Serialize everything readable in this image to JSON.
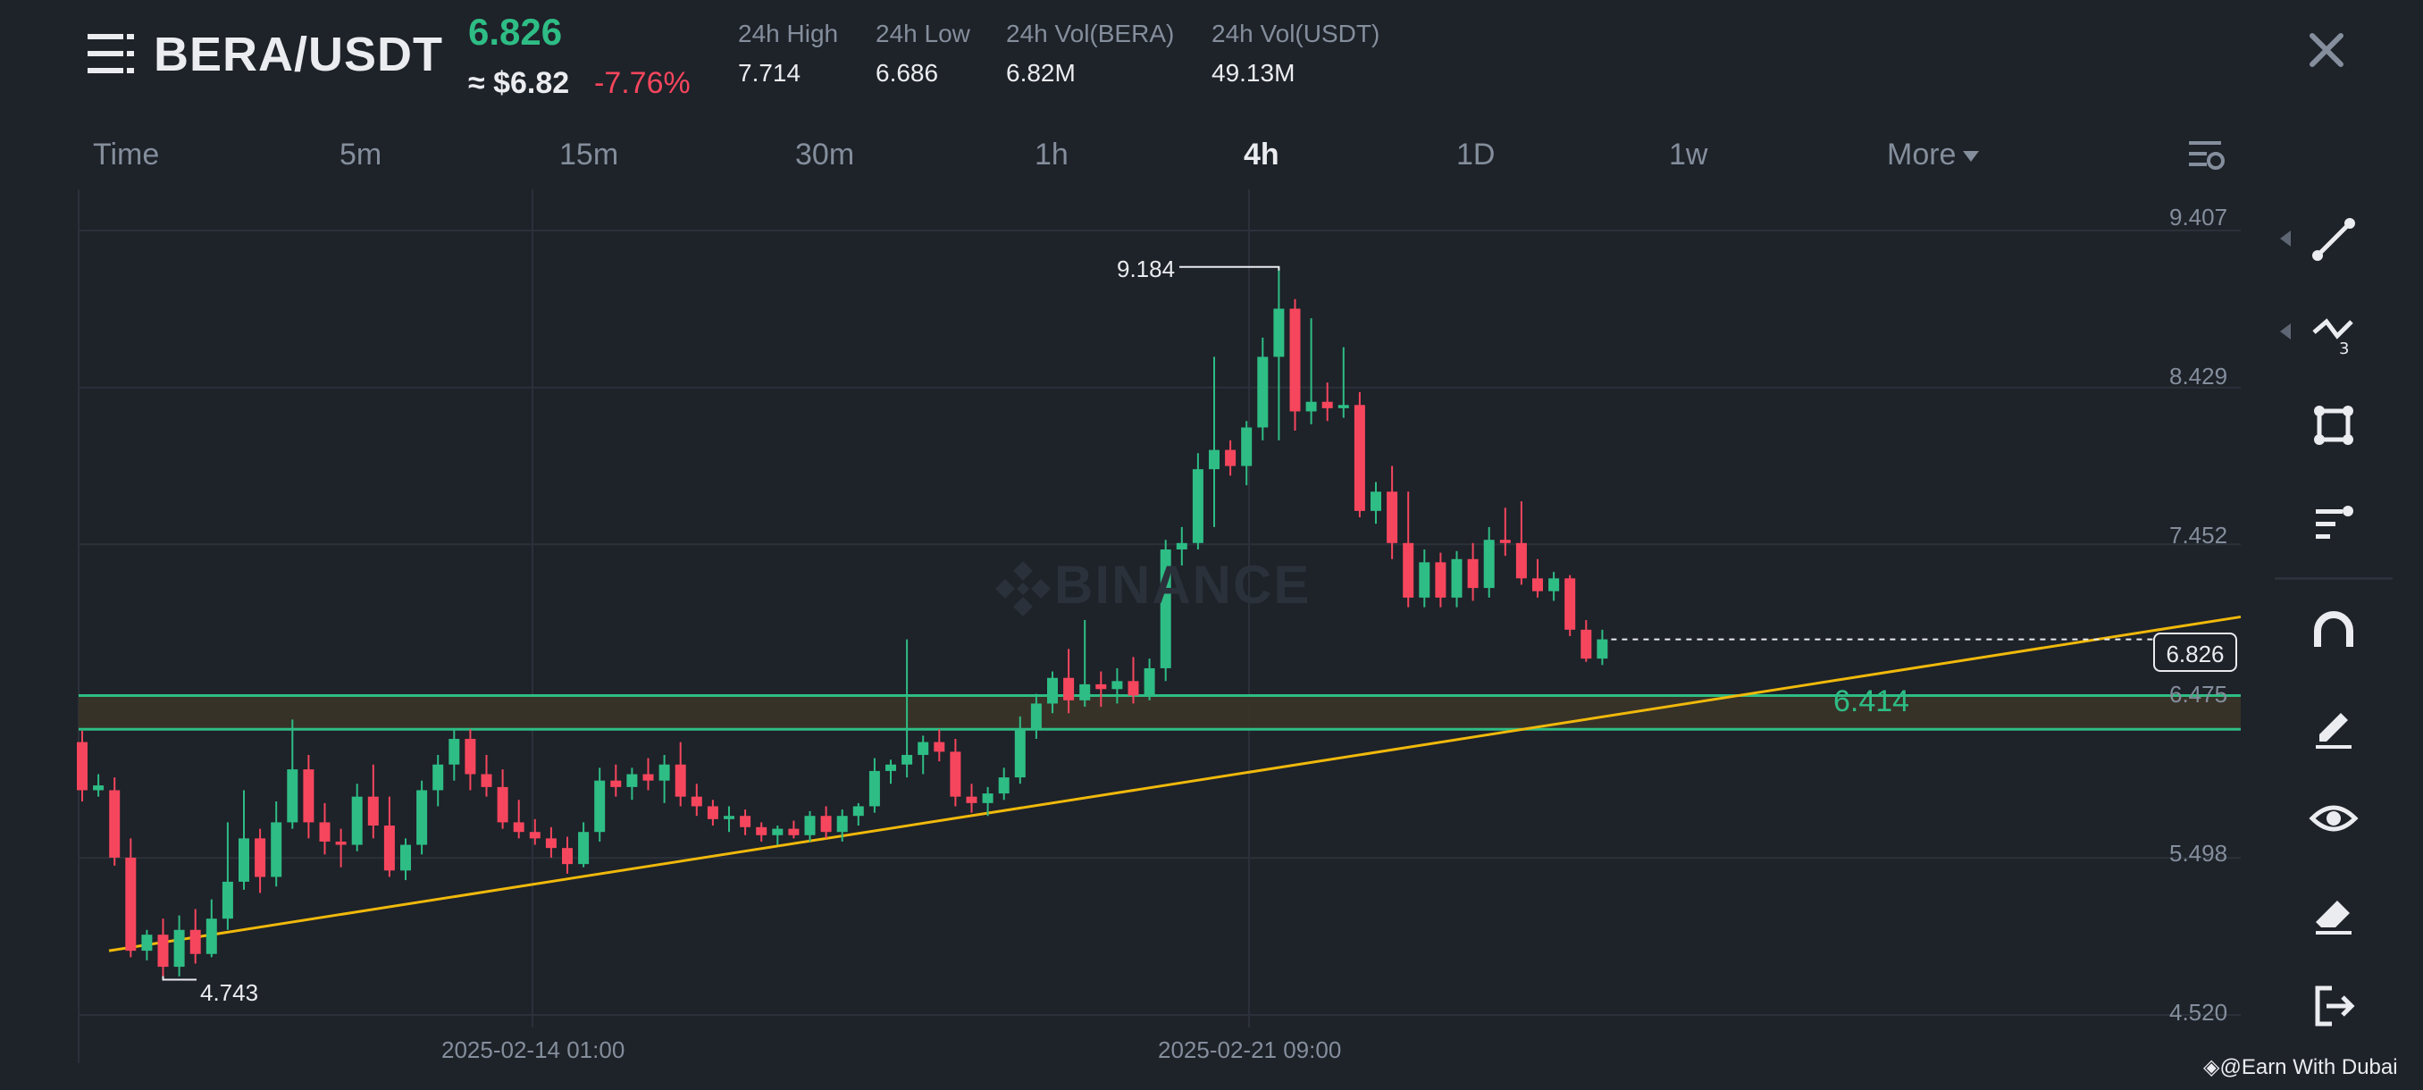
{
  "header": {
    "pair": "BERA/USDT",
    "last_price": "6.826",
    "approx_price": "≈ $6.82",
    "change_percent": "-7.76%",
    "stats": [
      {
        "label": "24h High",
        "value": "7.714"
      },
      {
        "label": "24h Low",
        "value": "6.686"
      },
      {
        "label": "24h Vol(BERA)",
        "value": "6.82M"
      },
      {
        "label": "24h Vol(USDT)",
        "value": "49.13M"
      }
    ]
  },
  "intervals": [
    {
      "label": "Time",
      "active": false
    },
    {
      "label": "5m",
      "active": false
    },
    {
      "label": "15m",
      "active": false
    },
    {
      "label": "30m",
      "active": false
    },
    {
      "label": "1h",
      "active": false
    },
    {
      "label": "4h",
      "active": true
    },
    {
      "label": "1D",
      "active": false
    },
    {
      "label": "1w",
      "active": false
    },
    {
      "label": "More",
      "active": false
    }
  ],
  "chart": {
    "price_ticks": [
      "9.407",
      "8.429",
      "7.452",
      "6.475",
      "5.498",
      "4.520"
    ],
    "last_price_label": "6.826",
    "zone_label": "6.414",
    "high_annotation": "9.184",
    "low_annotation": "4.743",
    "date_labels": [
      "2025-02-14 01:00",
      "2025-02-21 09:00"
    ],
    "watermark": "BINANCE"
  },
  "chart_data": {
    "type": "candlestick",
    "y_range": [
      4.52,
      9.407
    ],
    "up_color": "#2ebd85",
    "down_color": "#f6465d",
    "trendline_color": "#f0b90b",
    "zone_color": "#2ebd85",
    "zone_price_range": [
      6.3,
      6.51
    ],
    "trendline": {
      "from": 4.92,
      "to": 7.0
    },
    "candles": [
      [
        6.22,
        6.29,
        5.85,
        5.92
      ],
      [
        5.92,
        6.02,
        5.88,
        5.95
      ],
      [
        5.92,
        6.0,
        5.45,
        5.5
      ],
      [
        5.5,
        5.62,
        4.88,
        4.92
      ],
      [
        4.92,
        5.05,
        4.86,
        5.02
      ],
      [
        5.02,
        5.12,
        4.74,
        4.82
      ],
      [
        4.82,
        5.14,
        4.76,
        5.05
      ],
      [
        5.05,
        5.18,
        4.84,
        4.9
      ],
      [
        4.9,
        5.24,
        4.88,
        5.12
      ],
      [
        5.12,
        5.72,
        5.05,
        5.35
      ],
      [
        5.35,
        5.92,
        5.3,
        5.62
      ],
      [
        5.62,
        5.68,
        5.28,
        5.38
      ],
      [
        5.38,
        5.85,
        5.32,
        5.72
      ],
      [
        5.72,
        6.36,
        5.68,
        6.05
      ],
      [
        6.05,
        6.14,
        5.62,
        5.72
      ],
      [
        5.72,
        5.84,
        5.52,
        5.6
      ],
      [
        5.6,
        5.68,
        5.44,
        5.58
      ],
      [
        5.58,
        5.96,
        5.54,
        5.88
      ],
      [
        5.88,
        6.08,
        5.62,
        5.7
      ],
      [
        5.7,
        5.88,
        5.38,
        5.42
      ],
      [
        5.42,
        5.62,
        5.36,
        5.58
      ],
      [
        5.58,
        5.98,
        5.52,
        5.92
      ],
      [
        5.92,
        6.14,
        5.82,
        6.08
      ],
      [
        6.08,
        6.3,
        5.98,
        6.24
      ],
      [
        6.24,
        6.3,
        5.92,
        6.02
      ],
      [
        6.02,
        6.14,
        5.88,
        5.94
      ],
      [
        5.94,
        6.05,
        5.68,
        5.72
      ],
      [
        5.72,
        5.86,
        5.62,
        5.66
      ],
      [
        5.66,
        5.74,
        5.58,
        5.62
      ],
      [
        5.62,
        5.69,
        5.5,
        5.56
      ],
      [
        5.56,
        5.63,
        5.4,
        5.46
      ],
      [
        5.46,
        5.72,
        5.44,
        5.66
      ],
      [
        5.66,
        6.06,
        5.6,
        5.98
      ],
      [
        5.98,
        6.08,
        5.88,
        5.94
      ],
      [
        5.94,
        6.06,
        5.86,
        6.02
      ],
      [
        6.02,
        6.12,
        5.92,
        5.98
      ],
      [
        5.98,
        6.14,
        5.84,
        6.08
      ],
      [
        6.08,
        6.22,
        5.82,
        5.88
      ],
      [
        5.88,
        5.96,
        5.76,
        5.82
      ],
      [
        5.82,
        5.86,
        5.7,
        5.74
      ],
      [
        5.74,
        5.82,
        5.66,
        5.76
      ],
      [
        5.76,
        5.8,
        5.64,
        5.69
      ],
      [
        5.69,
        5.72,
        5.6,
        5.64
      ],
      [
        5.64,
        5.7,
        5.58,
        5.68
      ],
      [
        5.68,
        5.73,
        5.62,
        5.64
      ],
      [
        5.64,
        5.79,
        5.6,
        5.76
      ],
      [
        5.76,
        5.82,
        5.62,
        5.66
      ],
      [
        5.66,
        5.8,
        5.6,
        5.76
      ],
      [
        5.76,
        5.84,
        5.7,
        5.82
      ],
      [
        5.82,
        6.12,
        5.78,
        6.04
      ],
      [
        6.04,
        6.11,
        5.96,
        6.08
      ],
      [
        6.08,
        6.86,
        6.0,
        6.14
      ],
      [
        6.14,
        6.26,
        6.02,
        6.22
      ],
      [
        6.22,
        6.3,
        6.1,
        6.16
      ],
      [
        6.16,
        6.24,
        5.82,
        5.88
      ],
      [
        5.88,
        5.96,
        5.78,
        5.84
      ],
      [
        5.84,
        5.94,
        5.76,
        5.9
      ],
      [
        5.9,
        6.06,
        5.86,
        6.0
      ],
      [
        6.0,
        6.38,
        5.96,
        6.3
      ],
      [
        6.3,
        6.52,
        6.24,
        6.46
      ],
      [
        6.46,
        6.66,
        6.4,
        6.62
      ],
      [
        6.62,
        6.8,
        6.4,
        6.48
      ],
      [
        6.48,
        6.98,
        6.44,
        6.58
      ],
      [
        6.58,
        6.66,
        6.44,
        6.55
      ],
      [
        6.55,
        6.68,
        6.46,
        6.6
      ],
      [
        6.6,
        6.75,
        6.46,
        6.51
      ],
      [
        6.51,
        6.74,
        6.48,
        6.68
      ],
      [
        6.68,
        7.48,
        6.6,
        7.42
      ],
      [
        7.42,
        7.56,
        7.32,
        7.46
      ],
      [
        7.46,
        8.02,
        7.42,
        7.92
      ],
      [
        7.92,
        8.62,
        7.56,
        8.04
      ],
      [
        8.04,
        8.1,
        7.88,
        7.94
      ],
      [
        7.94,
        8.22,
        7.82,
        8.18
      ],
      [
        8.18,
        8.74,
        8.1,
        8.62
      ],
      [
        8.62,
        9.18,
        8.1,
        8.92
      ],
      [
        8.92,
        8.98,
        8.16,
        8.28
      ],
      [
        8.28,
        8.86,
        8.2,
        8.34
      ],
      [
        8.34,
        8.46,
        8.22,
        8.3
      ],
      [
        8.3,
        8.68,
        8.24,
        8.32
      ],
      [
        8.32,
        8.4,
        7.62,
        7.66
      ],
      [
        7.66,
        7.84,
        7.58,
        7.78
      ],
      [
        7.78,
        7.94,
        7.36,
        7.46
      ],
      [
        7.46,
        7.78,
        7.06,
        7.12
      ],
      [
        7.12,
        7.42,
        7.06,
        7.34
      ],
      [
        7.34,
        7.4,
        7.06,
        7.12
      ],
      [
        7.12,
        7.41,
        7.06,
        7.36
      ],
      [
        7.36,
        7.46,
        7.1,
        7.18
      ],
      [
        7.18,
        7.56,
        7.12,
        7.48
      ],
      [
        7.48,
        7.68,
        7.38,
        7.46
      ],
      [
        7.46,
        7.72,
        7.2,
        7.24
      ],
      [
        7.24,
        7.36,
        7.12,
        7.16
      ],
      [
        7.16,
        7.28,
        7.1,
        7.24
      ],
      [
        7.24,
        7.26,
        6.88,
        6.92
      ],
      [
        6.92,
        6.98,
        6.72,
        6.74
      ],
      [
        6.74,
        6.92,
        6.7,
        6.86
      ]
    ]
  },
  "toolbar": {
    "tools": [
      "line-tool-icon",
      "fib-tool-icon",
      "rectangle-tool-icon",
      "indicator-tool-icon",
      "magnet-icon",
      "pencil-icon",
      "eye-icon",
      "eraser-icon",
      "exit-icon"
    ]
  },
  "credit": "@Earn With Dubai"
}
